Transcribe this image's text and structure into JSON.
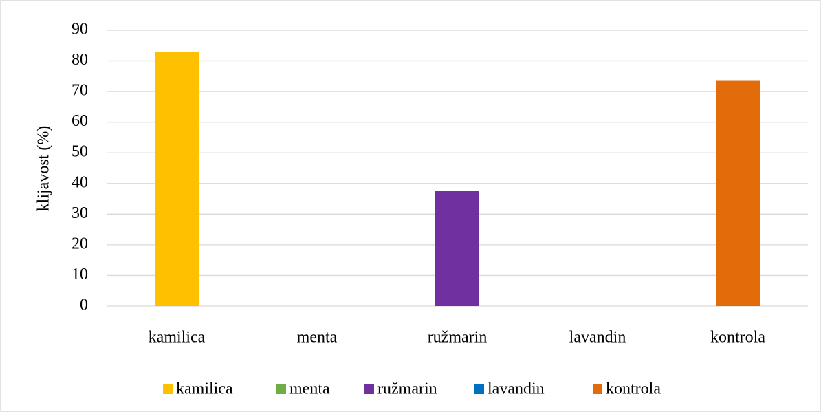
{
  "chart_data": {
    "type": "bar",
    "y_label": "klijavost (%)",
    "categories": [
      "kamilica",
      "menta",
      "ružmarin",
      "lavandin",
      "kontrola"
    ],
    "values": [
      83,
      0,
      37.5,
      0,
      73.5
    ],
    "colors": [
      "#ffc000",
      "#70ad47",
      "#7030a0",
      "#0070c0",
      "#e36c0a"
    ],
    "ylim": [
      0,
      90
    ],
    "yticks": [
      0,
      10,
      20,
      30,
      40,
      50,
      60,
      70,
      80,
      90
    ],
    "grid": true,
    "legend": "bottom"
  }
}
